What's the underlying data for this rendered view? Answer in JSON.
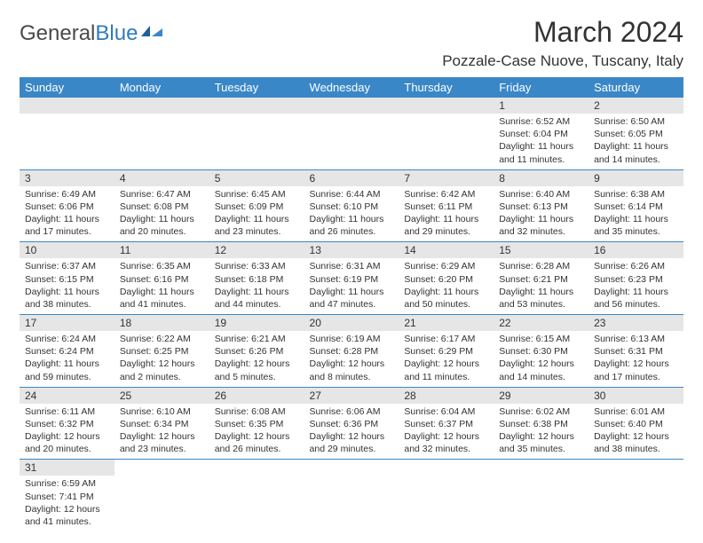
{
  "logo": {
    "text_general": "General",
    "text_blue": "Blue"
  },
  "title": "March 2024",
  "location": "Pozzale-Case Nuove, Tuscany, Italy",
  "colors": {
    "header_bg": "#3a87c8",
    "header_text": "#ffffff",
    "daynum_bg": "#e6e6e6",
    "body_text": "#333333",
    "row_border": "#3a87c8",
    "logo_gray": "#4a4a4a",
    "logo_blue": "#2f7bbf"
  },
  "weekdays": [
    "Sunday",
    "Monday",
    "Tuesday",
    "Wednesday",
    "Thursday",
    "Friday",
    "Saturday"
  ],
  "weeks": [
    [
      null,
      null,
      null,
      null,
      null,
      {
        "n": "1",
        "sr": "Sunrise: 6:52 AM",
        "ss": "Sunset: 6:04 PM",
        "dl": "Daylight: 11 hours and 11 minutes."
      },
      {
        "n": "2",
        "sr": "Sunrise: 6:50 AM",
        "ss": "Sunset: 6:05 PM",
        "dl": "Daylight: 11 hours and 14 minutes."
      }
    ],
    [
      {
        "n": "3",
        "sr": "Sunrise: 6:49 AM",
        "ss": "Sunset: 6:06 PM",
        "dl": "Daylight: 11 hours and 17 minutes."
      },
      {
        "n": "4",
        "sr": "Sunrise: 6:47 AM",
        "ss": "Sunset: 6:08 PM",
        "dl": "Daylight: 11 hours and 20 minutes."
      },
      {
        "n": "5",
        "sr": "Sunrise: 6:45 AM",
        "ss": "Sunset: 6:09 PM",
        "dl": "Daylight: 11 hours and 23 minutes."
      },
      {
        "n": "6",
        "sr": "Sunrise: 6:44 AM",
        "ss": "Sunset: 6:10 PM",
        "dl": "Daylight: 11 hours and 26 minutes."
      },
      {
        "n": "7",
        "sr": "Sunrise: 6:42 AM",
        "ss": "Sunset: 6:11 PM",
        "dl": "Daylight: 11 hours and 29 minutes."
      },
      {
        "n": "8",
        "sr": "Sunrise: 6:40 AM",
        "ss": "Sunset: 6:13 PM",
        "dl": "Daylight: 11 hours and 32 minutes."
      },
      {
        "n": "9",
        "sr": "Sunrise: 6:38 AM",
        "ss": "Sunset: 6:14 PM",
        "dl": "Daylight: 11 hours and 35 minutes."
      }
    ],
    [
      {
        "n": "10",
        "sr": "Sunrise: 6:37 AM",
        "ss": "Sunset: 6:15 PM",
        "dl": "Daylight: 11 hours and 38 minutes."
      },
      {
        "n": "11",
        "sr": "Sunrise: 6:35 AM",
        "ss": "Sunset: 6:16 PM",
        "dl": "Daylight: 11 hours and 41 minutes."
      },
      {
        "n": "12",
        "sr": "Sunrise: 6:33 AM",
        "ss": "Sunset: 6:18 PM",
        "dl": "Daylight: 11 hours and 44 minutes."
      },
      {
        "n": "13",
        "sr": "Sunrise: 6:31 AM",
        "ss": "Sunset: 6:19 PM",
        "dl": "Daylight: 11 hours and 47 minutes."
      },
      {
        "n": "14",
        "sr": "Sunrise: 6:29 AM",
        "ss": "Sunset: 6:20 PM",
        "dl": "Daylight: 11 hours and 50 minutes."
      },
      {
        "n": "15",
        "sr": "Sunrise: 6:28 AM",
        "ss": "Sunset: 6:21 PM",
        "dl": "Daylight: 11 hours and 53 minutes."
      },
      {
        "n": "16",
        "sr": "Sunrise: 6:26 AM",
        "ss": "Sunset: 6:23 PM",
        "dl": "Daylight: 11 hours and 56 minutes."
      }
    ],
    [
      {
        "n": "17",
        "sr": "Sunrise: 6:24 AM",
        "ss": "Sunset: 6:24 PM",
        "dl": "Daylight: 11 hours and 59 minutes."
      },
      {
        "n": "18",
        "sr": "Sunrise: 6:22 AM",
        "ss": "Sunset: 6:25 PM",
        "dl": "Daylight: 12 hours and 2 minutes."
      },
      {
        "n": "19",
        "sr": "Sunrise: 6:21 AM",
        "ss": "Sunset: 6:26 PM",
        "dl": "Daylight: 12 hours and 5 minutes."
      },
      {
        "n": "20",
        "sr": "Sunrise: 6:19 AM",
        "ss": "Sunset: 6:28 PM",
        "dl": "Daylight: 12 hours and 8 minutes."
      },
      {
        "n": "21",
        "sr": "Sunrise: 6:17 AM",
        "ss": "Sunset: 6:29 PM",
        "dl": "Daylight: 12 hours and 11 minutes."
      },
      {
        "n": "22",
        "sr": "Sunrise: 6:15 AM",
        "ss": "Sunset: 6:30 PM",
        "dl": "Daylight: 12 hours and 14 minutes."
      },
      {
        "n": "23",
        "sr": "Sunrise: 6:13 AM",
        "ss": "Sunset: 6:31 PM",
        "dl": "Daylight: 12 hours and 17 minutes."
      }
    ],
    [
      {
        "n": "24",
        "sr": "Sunrise: 6:11 AM",
        "ss": "Sunset: 6:32 PM",
        "dl": "Daylight: 12 hours and 20 minutes."
      },
      {
        "n": "25",
        "sr": "Sunrise: 6:10 AM",
        "ss": "Sunset: 6:34 PM",
        "dl": "Daylight: 12 hours and 23 minutes."
      },
      {
        "n": "26",
        "sr": "Sunrise: 6:08 AM",
        "ss": "Sunset: 6:35 PM",
        "dl": "Daylight: 12 hours and 26 minutes."
      },
      {
        "n": "27",
        "sr": "Sunrise: 6:06 AM",
        "ss": "Sunset: 6:36 PM",
        "dl": "Daylight: 12 hours and 29 minutes."
      },
      {
        "n": "28",
        "sr": "Sunrise: 6:04 AM",
        "ss": "Sunset: 6:37 PM",
        "dl": "Daylight: 12 hours and 32 minutes."
      },
      {
        "n": "29",
        "sr": "Sunrise: 6:02 AM",
        "ss": "Sunset: 6:38 PM",
        "dl": "Daylight: 12 hours and 35 minutes."
      },
      {
        "n": "30",
        "sr": "Sunrise: 6:01 AM",
        "ss": "Sunset: 6:40 PM",
        "dl": "Daylight: 12 hours and 38 minutes."
      }
    ],
    [
      {
        "n": "31",
        "sr": "Sunrise: 6:59 AM",
        "ss": "Sunset: 7:41 PM",
        "dl": "Daylight: 12 hours and 41 minutes."
      },
      null,
      null,
      null,
      null,
      null,
      null
    ]
  ]
}
